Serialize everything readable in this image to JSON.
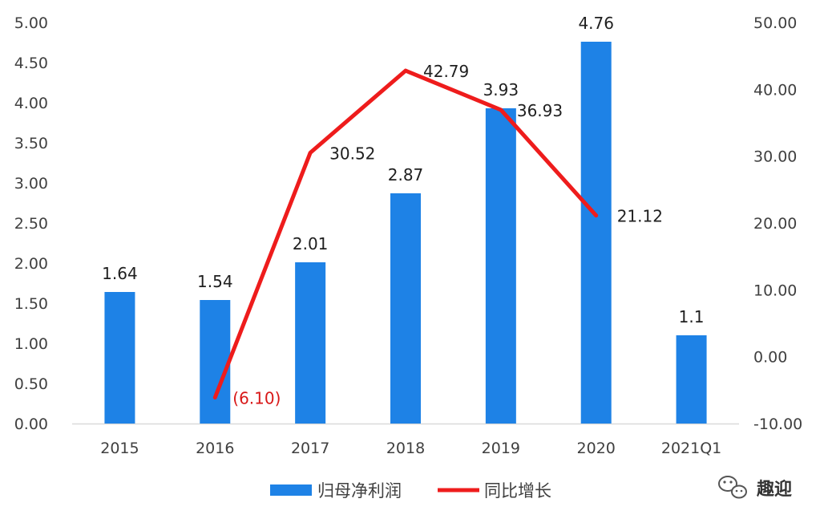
{
  "chart_data": {
    "type": "bar",
    "categories": [
      "2015",
      "2016",
      "2017",
      "2018",
      "2019",
      "2020",
      "2021Q1"
    ],
    "series": [
      {
        "name": "归母净利润",
        "type": "bar",
        "axis": "left",
        "values": [
          1.64,
          1.54,
          2.01,
          2.87,
          3.93,
          4.76,
          1.1
        ],
        "labels": [
          "1.64",
          "1.54",
          "2.01",
          "2.87",
          "3.93",
          "4.76",
          "1.1"
        ],
        "color": "#1e82e6"
      },
      {
        "name": "同比增长",
        "type": "line",
        "axis": "right",
        "values": [
          -6.1,
          30.52,
          42.79,
          36.93,
          21.12
        ],
        "x": [
          "2016",
          "2017",
          "2018",
          "2019",
          "2020"
        ],
        "labels": [
          "(6.10)",
          "30.52",
          "42.79",
          "36.93",
          "21.12"
        ],
        "color": "#ee1c1c"
      }
    ],
    "y_left": {
      "ylim": [
        0,
        5
      ],
      "ticks": [
        "0.00",
        "0.50",
        "1.00",
        "1.50",
        "2.00",
        "2.50",
        "3.00",
        "3.50",
        "4.00",
        "4.50",
        "5.00"
      ]
    },
    "y_right": {
      "ylim": [
        -10,
        50
      ],
      "ticks": [
        "-10.00",
        "0.00",
        "10.00",
        "20.00",
        "30.00",
        "40.00",
        "50.00"
      ]
    },
    "grid": false,
    "legend": "bottom-center"
  },
  "watermark": {
    "text": "趣迎",
    "icon": "wechat-icon"
  }
}
